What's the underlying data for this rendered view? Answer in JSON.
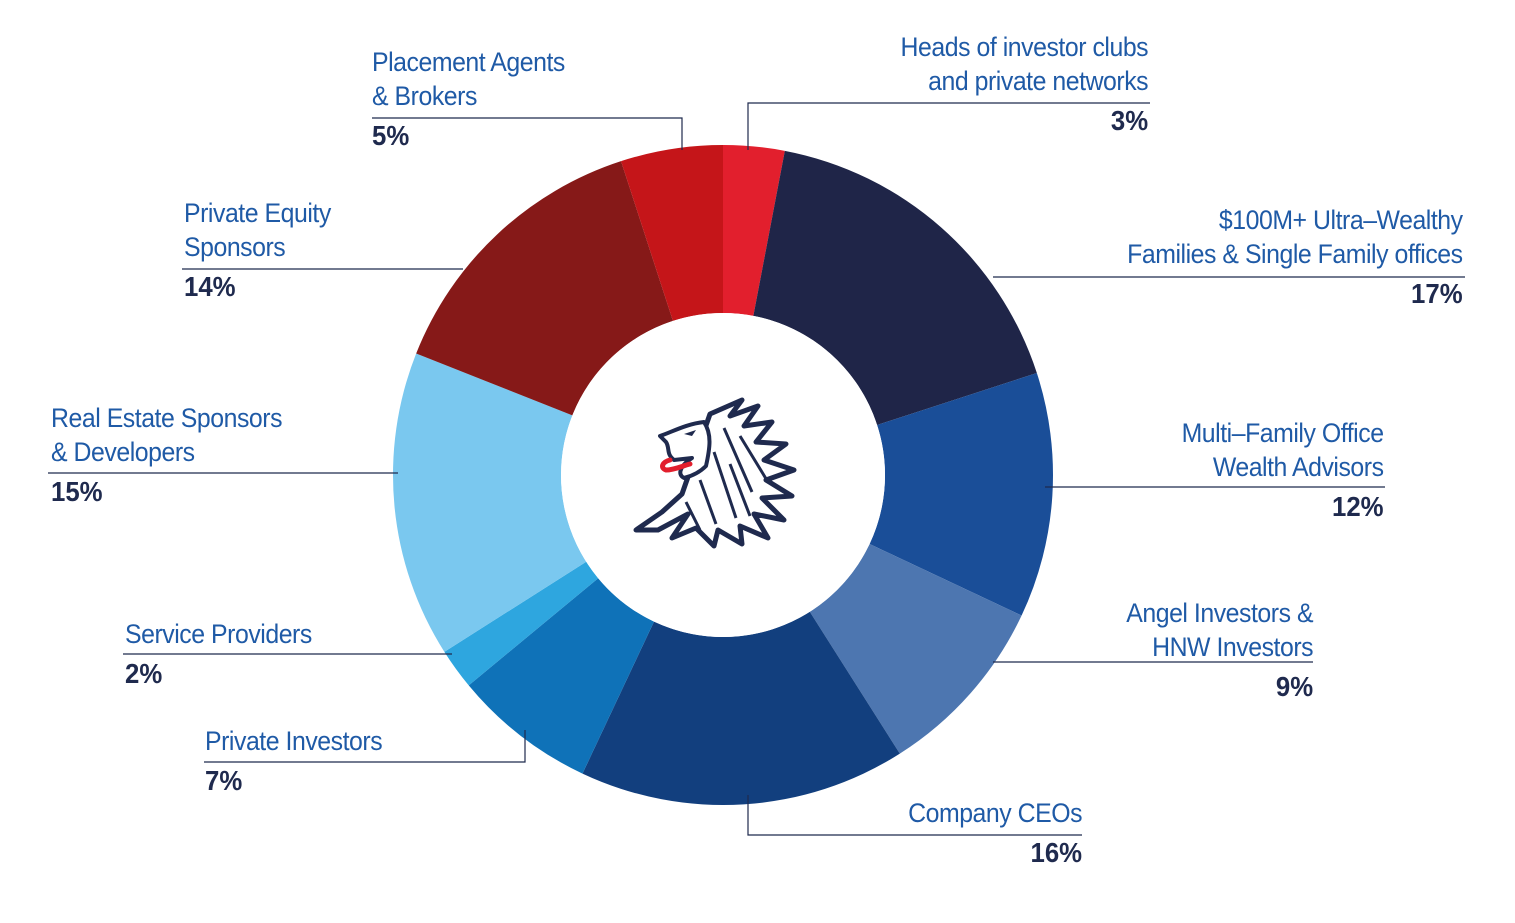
{
  "chart_data": {
    "type": "pie",
    "style": "donut",
    "slices": [
      {
        "name": "Heads of investor clubs and private networks",
        "lines": [
          "Heads of investor clubs",
          "and private networks"
        ],
        "value_label": "3%",
        "value": 3,
        "color": "#e21f2d"
      },
      {
        "name": "$100M+ Ultra–Wealthy Families & Single Family offices",
        "lines": [
          "$100M+ Ultra–Wealthy",
          "Families & Single Family offices"
        ],
        "value_label": "17%",
        "value": 17,
        "color": "#1f2548"
      },
      {
        "name": "Multi–Family Office Wealth Advisors",
        "lines": [
          "Multi–Family Office",
          "Wealth Advisors"
        ],
        "value_label": "12%",
        "value": 12,
        "color": "#1a4e98"
      },
      {
        "name": "Angel Investors & HNW Investors",
        "lines": [
          "Angel Investors &",
          "HNW Investors"
        ],
        "value_label": "9%",
        "value": 9,
        "color": "#4d76b0"
      },
      {
        "name": "Company CEOs",
        "lines": [
          "Company CEOs"
        ],
        "value_label": "16%",
        "value": 16,
        "color": "#123f7e"
      },
      {
        "name": "Private Investors",
        "lines": [
          "Private Investors"
        ],
        "value_label": "7%",
        "value": 7,
        "color": "#0f72b8"
      },
      {
        "name": "Service Providers",
        "lines": [
          "Service Providers"
        ],
        "value_label": "2%",
        "value": 2,
        "color": "#2ea6df"
      },
      {
        "name": "Real Estate Sponsors & Developers",
        "lines": [
          "Real Estate Sponsors",
          "& Developers"
        ],
        "value_label": "15%",
        "value": 15,
        "color": "#7ac8ef"
      },
      {
        "name": "Private Equity Sponsors",
        "lines": [
          "Private Equity",
          "Sponsors"
        ],
        "value_label": "14%",
        "value": 14,
        "color": "#861918"
      },
      {
        "name": "Placement Agents & Brokers",
        "lines": [
          "Placement Agents",
          "& Brokers"
        ],
        "value_label": "5%",
        "value": 5,
        "color": "#c51519"
      }
    ],
    "center_icon": "lion-head-logo-icon",
    "start_angle": "top",
    "direction": "clockwise"
  }
}
